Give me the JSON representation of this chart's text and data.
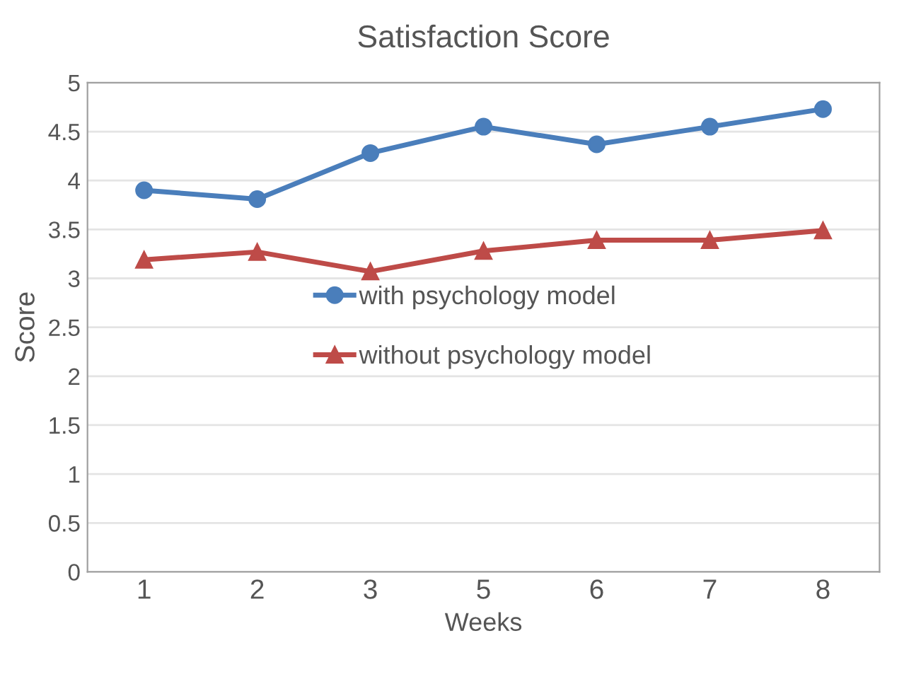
{
  "chart_data": {
    "type": "line",
    "title": "Satisfaction Score",
    "xlabel": "Weeks",
    "ylabel": "Score",
    "categories": [
      "1",
      "2",
      "3",
      "5",
      "6",
      "7",
      "8"
    ],
    "series": [
      {
        "name": "with psychology model",
        "color": "#4a7ebb",
        "marker": "circle",
        "values": [
          3.9,
          3.81,
          4.28,
          4.55,
          4.37,
          4.55,
          4.73
        ]
      },
      {
        "name": "without psychology model",
        "color": "#be4b48",
        "marker": "triangle",
        "values": [
          3.19,
          3.27,
          3.07,
          3.28,
          3.39,
          3.39,
          3.49
        ]
      }
    ],
    "ylim": [
      0,
      5
    ],
    "yticks": [
      0,
      0.5,
      1,
      1.5,
      2,
      2.5,
      3,
      3.5,
      4,
      4.5,
      5
    ],
    "grid": "y",
    "legend": "center",
    "line_style": "solid"
  }
}
